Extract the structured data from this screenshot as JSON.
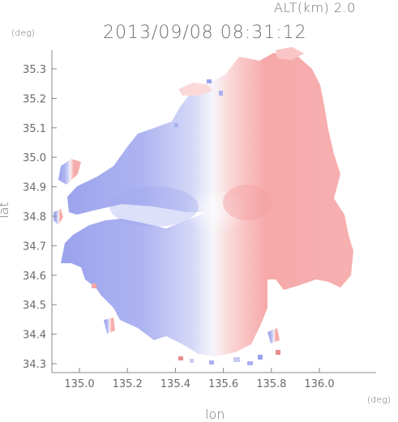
{
  "header": {
    "altitude_label": "ALT(km) 2.0",
    "timestamp": "2013/09/08 08:31:12"
  },
  "axes": {
    "x_label": "lon",
    "y_label": "lat",
    "x_unit": "(deg)",
    "y_unit": "(deg)",
    "x_ticks": [
      "135.0",
      "135.2",
      "135.4",
      "135.6",
      "135.8",
      "136.0"
    ],
    "y_ticks": [
      "35.3",
      "35.2",
      "35.1",
      "35.0",
      "34.9",
      "34.8",
      "34.7",
      "34.6",
      "34.5",
      "34.4",
      "34.3"
    ]
  },
  "map": {
    "x_range": [
      134.87,
      136.14
    ],
    "y_range": [
      34.28,
      35.35
    ],
    "radar_center": {
      "lon": 135.52,
      "lat": 34.82
    },
    "colors": {
      "approaching": "#aab0ef",
      "receding": "#f7a8a8",
      "zero": "#f6f6fb"
    }
  }
}
